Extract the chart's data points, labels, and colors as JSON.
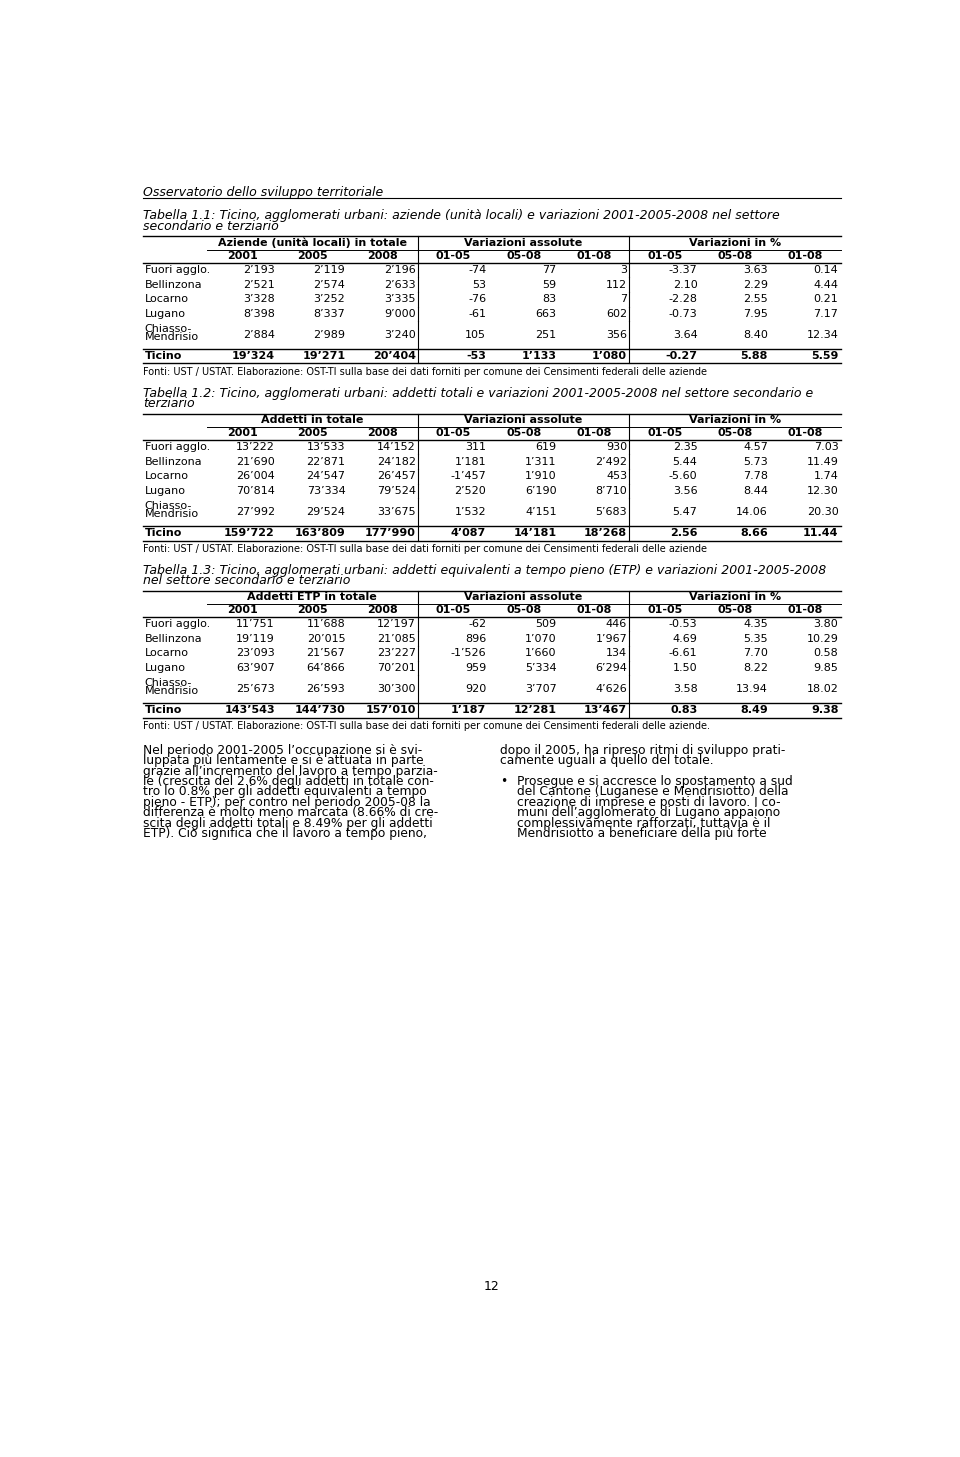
{
  "header": "Osservatorio dello sviluppo territoriale",
  "table1_title_line1": "Tabella 1.1: Ticino, agglomerati urbani: aziende (unità locali) e variazioni 2001-2005-2008 nel settore",
  "table1_title_line2": "secondario e terziario",
  "table1_col_groups": [
    "Aziende (unità locali) in totale",
    "Variazioni assolute",
    "Variazioni in %"
  ],
  "table1_sub_cols": [
    "2001",
    "2005",
    "2008",
    "01-05",
    "05-08",
    "01-08",
    "01-05",
    "05-08",
    "01-08"
  ],
  "table1_rows": [
    [
      "Fuori agglo.",
      "2’193",
      "2’119",
      "2’196",
      "-74",
      "77",
      "3",
      "-3.37",
      "3.63",
      "0.14"
    ],
    [
      "Bellinzona",
      "2’521",
      "2’574",
      "2’633",
      "53",
      "59",
      "112",
      "2.10",
      "2.29",
      "4.44"
    ],
    [
      "Locarno",
      "3’328",
      "3’252",
      "3’335",
      "-76",
      "83",
      "7",
      "-2.28",
      "2.55",
      "0.21"
    ],
    [
      "Lugano",
      "8’398",
      "8’337",
      "9’000",
      "-61",
      "663",
      "602",
      "-0.73",
      "7.95",
      "7.17"
    ],
    [
      "Chiasso-\nMendrisio",
      "2’884",
      "2’989",
      "3’240",
      "105",
      "251",
      "356",
      "3.64",
      "8.40",
      "12.34"
    ],
    [
      "Ticino",
      "19’324",
      "19’271",
      "20’404",
      "-53",
      "1’133",
      "1’080",
      "-0.27",
      "5.88",
      "5.59"
    ]
  ],
  "table1_fonte": "Fonti: UST / USTAT. Elaborazione: OST-TI sulla base dei dati forniti per comune dei Censimenti federali delle aziende",
  "table2_title_line1": "Tabella 1.2: Ticino, agglomerati urbani: addetti totali e variazioni 2001-2005-2008 nel settore secondario e",
  "table2_title_line2": "terziario",
  "table2_col_groups": [
    "Addetti in totale",
    "Variazioni assolute",
    "Variazioni in %"
  ],
  "table2_sub_cols": [
    "2001",
    "2005",
    "2008",
    "01-05",
    "05-08",
    "01-08",
    "01-05",
    "05-08",
    "01-08"
  ],
  "table2_rows": [
    [
      "Fuori agglo.",
      "13’222",
      "13’533",
      "14’152",
      "311",
      "619",
      "930",
      "2.35",
      "4.57",
      "7.03"
    ],
    [
      "Bellinzona",
      "21’690",
      "22’871",
      "24’182",
      "1’181",
      "1’311",
      "2’492",
      "5.44",
      "5.73",
      "11.49"
    ],
    [
      "Locarno",
      "26’004",
      "24’547",
      "26’457",
      "-1’457",
      "1’910",
      "453",
      "-5.60",
      "7.78",
      "1.74"
    ],
    [
      "Lugano",
      "70’814",
      "73’334",
      "79’524",
      "2’520",
      "6’190",
      "8’710",
      "3.56",
      "8.44",
      "12.30"
    ],
    [
      "Chiasso-\nMendrisio",
      "27’992",
      "29’524",
      "33’675",
      "1’532",
      "4’151",
      "5’683",
      "5.47",
      "14.06",
      "20.30"
    ],
    [
      "Ticino",
      "159’722",
      "163’809",
      "177’990",
      "4’087",
      "14’181",
      "18’268",
      "2.56",
      "8.66",
      "11.44"
    ]
  ],
  "table2_fonte": "Fonti: UST / USTAT. Elaborazione: OST-TI sulla base dei dati forniti per comune dei Censimenti federali delle aziende",
  "table3_title_line1": "Tabella 1.3: Ticino, agglomerati urbani: addetti equivalenti a tempo pieno (ETP) e variazioni 2001-2005-2008",
  "table3_title_line2": "nel settore secondario e terziario",
  "table3_col_groups": [
    "Addetti ETP in totale",
    "Variazioni assolute",
    "Variazioni in %"
  ],
  "table3_sub_cols": [
    "2001",
    "2005",
    "2008",
    "01-05",
    "05-08",
    "01-08",
    "01-05",
    "05-08",
    "01-08"
  ],
  "table3_rows": [
    [
      "Fuori agglo.",
      "11’751",
      "11’688",
      "12’197",
      "-62",
      "509",
      "446",
      "-0.53",
      "4.35",
      "3.80"
    ],
    [
      "Bellinzona",
      "19’119",
      "20’015",
      "21’085",
      "896",
      "1’070",
      "1’967",
      "4.69",
      "5.35",
      "10.29"
    ],
    [
      "Locarno",
      "23’093",
      "21’567",
      "23’227",
      "-1’526",
      "1’660",
      "134",
      "-6.61",
      "7.70",
      "0.58"
    ],
    [
      "Lugano",
      "63’907",
      "64’866",
      "70’201",
      "959",
      "5’334",
      "6’294",
      "1.50",
      "8.22",
      "9.85"
    ],
    [
      "Chiasso-\nMendrisio",
      "25’673",
      "26’593",
      "30’300",
      "920",
      "3’707",
      "4’626",
      "3.58",
      "13.94",
      "18.02"
    ],
    [
      "Ticino",
      "143’543",
      "144’730",
      "157’010",
      "1’187",
      "12’281",
      "13’467",
      "0.83",
      "8.49",
      "9.38"
    ]
  ],
  "table3_fonte": "Fonti: UST / USTAT. Elaborazione: OST-TI sulla base dei dati forniti per comune dei Censimenti federali delle aziende.",
  "text_left": "Nel periodo 2001-2005 l’occupazione si è svi-\nluppata più lentamente e si è attuata in parte\ngrazie all’incremento del lavoro a tempo parzia-\nle (crescita del 2.6% degli addetti in totale con-\ntro lo 0.8% per gli addetti equivalenti a tempo\npieno - ETP); per contro nel periodo 2005-08 la\ndifferenza è molto meno marcata (8.66% di cre-\nscita degli addetti totali e 8.49% per gli addetti\nETP). Ciò significa che il lavoro a tempo pieno,",
  "text_right_line1": "dopo il 2005, ha ripreso ritmi di sviluppo prati-",
  "text_right_line2": "camente uguali a quello del totale.",
  "text_right_bullet": "Prosegue e si accresce lo spostamento a sud\ndel Cantone (Luganese e Mendrisiotto) della\ncreazione di imprese e posti di lavoro. I co-\nmuni dell’agglomerato di Lugano appaiono\ncomplessivamente rafforzati, tuttavia è il\nMendrisiotto a beneficiare della più forte",
  "page_number": "12"
}
